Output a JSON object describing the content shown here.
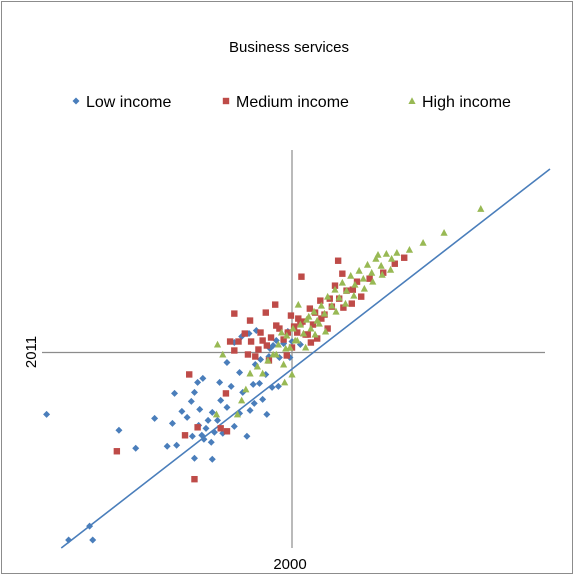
{
  "chart_data": {
    "type": "scatter",
    "title": "Business services",
    "xlabel": "2000",
    "ylabel": "2011",
    "legend_position": "top",
    "grid": false,
    "xlim": [
      -2.46,
      2.46
    ],
    "ylim": [
      -2.03,
      2.03
    ],
    "series": [
      {
        "name": "Low income",
        "color": "#4a7ebb",
        "marker": "diamond",
        "points": [
          [
            -2.34,
            -0.62
          ],
          [
            -2.13,
            -1.88
          ],
          [
            -1.93,
            -1.74
          ],
          [
            -1.9,
            -1.88
          ],
          [
            -1.65,
            -0.78
          ],
          [
            -1.49,
            -0.96
          ],
          [
            -1.31,
            -0.66
          ],
          [
            -1.19,
            -0.94
          ],
          [
            -1.14,
            -0.71
          ],
          [
            -1.1,
            -0.93
          ],
          [
            -1.05,
            -0.59
          ],
          [
            -1.0,
            -0.65
          ],
          [
            -0.96,
            -0.49
          ],
          [
            -0.95,
            -0.84
          ],
          [
            -0.93,
            -0.4
          ],
          [
            -0.9,
            -0.3
          ],
          [
            -0.89,
            -0.73
          ],
          [
            -0.88,
            -0.57
          ],
          [
            -0.86,
            -0.83
          ],
          [
            -0.84,
            -0.87
          ],
          [
            -0.82,
            -0.76
          ],
          [
            -0.8,
            -0.68
          ],
          [
            -0.77,
            -0.9
          ],
          [
            -0.74,
            -0.8
          ],
          [
            -0.71,
            -0.68
          ],
          [
            -0.68,
            -0.48
          ],
          [
            -0.66,
            -0.81
          ],
          [
            -0.62,
            -0.55
          ],
          [
            -0.58,
            -0.34
          ],
          [
            -0.55,
            -0.74
          ],
          [
            -0.5,
            -0.61
          ],
          [
            -0.47,
            -0.4
          ],
          [
            -0.43,
            -0.84
          ],
          [
            -0.4,
            -0.58
          ],
          [
            -0.37,
            -0.32
          ],
          [
            -0.35,
            -0.12
          ],
          [
            -0.31,
            -0.31
          ],
          [
            -0.28,
            -0.47
          ],
          [
            -0.25,
            -0.22
          ],
          [
            -0.22,
            -0.04
          ],
          [
            -0.19,
            -0.35
          ],
          [
            -0.15,
            0.12
          ],
          [
            -0.12,
            -0.05
          ],
          [
            -0.08,
            0.09
          ],
          [
            -0.04,
            0.21
          ],
          [
            0.0,
            0.11
          ],
          [
            -0.62,
            -0.1
          ],
          [
            -0.55,
            0.1
          ],
          [
            -0.48,
            0.16
          ],
          [
            -0.41,
            0.19
          ],
          [
            -0.34,
            0.22
          ],
          [
            -0.18,
            0.07
          ],
          [
            -0.76,
            -1.07
          ],
          [
            -0.93,
            -1.06
          ],
          [
            -0.85,
            -0.26
          ],
          [
            -0.69,
            -0.3
          ],
          [
            -0.5,
            -0.2
          ],
          [
            -0.36,
            -0.51
          ],
          [
            -0.24,
            -0.62
          ],
          [
            -0.13,
            -0.34
          ],
          [
            -0.02,
            -0.05
          ],
          [
            0.08,
            0.08
          ],
          [
            -1.12,
            -0.41
          ],
          [
            -0.76,
            -0.6
          ],
          [
            -0.21,
            0.04
          ],
          [
            -0.3,
            -0.07
          ]
        ]
      },
      {
        "name": "Medium income",
        "color": "#be4b48",
        "marker": "square",
        "points": [
          [
            -1.67,
            -0.99
          ],
          [
            -0.98,
            -0.22
          ],
          [
            -0.93,
            -1.27
          ],
          [
            -0.68,
            -0.76
          ],
          [
            -0.62,
            -0.79
          ],
          [
            -0.59,
            0.11
          ],
          [
            -0.55,
            0.02
          ],
          [
            -0.51,
            0.11
          ],
          [
            -0.45,
            0.19
          ],
          [
            -0.42,
            -0.02
          ],
          [
            -0.39,
            0.11
          ],
          [
            -0.35,
            -0.04
          ],
          [
            -0.32,
            0.03
          ],
          [
            -0.28,
            0.12
          ],
          [
            -0.24,
            0.07
          ],
          [
            -0.2,
            0.15
          ],
          [
            -0.16,
            0.48
          ],
          [
            -0.12,
            0.24
          ],
          [
            -0.08,
            0.13
          ],
          [
            -0.04,
            0.2
          ],
          [
            -0.01,
            0.37
          ],
          [
            0.02,
            0.26
          ],
          [
            0.06,
            0.34
          ],
          [
            0.1,
            0.31
          ],
          [
            0.13,
            0.18
          ],
          [
            0.17,
            0.44
          ],
          [
            0.2,
            0.28
          ],
          [
            0.24,
            0.14
          ],
          [
            0.27,
            0.52
          ],
          [
            0.31,
            0.38
          ],
          [
            0.34,
            0.24
          ],
          [
            0.38,
            0.46
          ],
          [
            0.41,
            0.67
          ],
          [
            0.45,
            0.54
          ],
          [
            0.48,
            0.79
          ],
          [
            0.52,
            0.62
          ],
          [
            0.57,
            0.49
          ],
          [
            0.62,
            0.71
          ],
          [
            0.66,
            0.56
          ],
          [
            0.74,
            0.74
          ],
          [
            0.09,
            0.76
          ],
          [
            0.44,
            0.92
          ],
          [
            0.08,
            0.29
          ],
          [
            0.0,
            0.05
          ],
          [
            0.15,
            0.18
          ],
          [
            -0.22,
            -0.08
          ],
          [
            -0.05,
            -0.03
          ],
          [
            0.05,
            0.2
          ],
          [
            -0.55,
            0.39
          ],
          [
            -0.4,
            0.32
          ],
          [
            -0.25,
            0.4
          ],
          [
            0.22,
            0.4
          ],
          [
            -0.9,
            -0.75
          ],
          [
            -1.02,
            -0.83
          ],
          [
            -0.63,
            -0.41
          ],
          [
            -0.3,
            0.2
          ],
          [
            -0.15,
            0.27
          ],
          [
            0.18,
            0.1
          ],
          [
            0.28,
            0.34
          ],
          [
            0.36,
            0.54
          ],
          [
            0.49,
            0.45
          ],
          [
            0.58,
            0.63
          ],
          [
            1.07,
            0.95
          ],
          [
            0.87,
            0.8
          ],
          [
            0.98,
            0.89
          ]
        ]
      },
      {
        "name": "High income",
        "color": "#98b954",
        "marker": "triangle",
        "points": [
          [
            -0.72,
            -0.62
          ],
          [
            -0.71,
            0.08
          ],
          [
            -0.66,
            -0.02
          ],
          [
            -0.52,
            -0.62
          ],
          [
            -0.48,
            -0.48
          ],
          [
            -0.44,
            -0.37
          ],
          [
            -0.4,
            -0.21
          ],
          [
            -0.33,
            -0.14
          ],
          [
            -0.28,
            -0.21
          ],
          [
            -0.23,
            -0.08
          ],
          [
            -0.18,
            -0.02
          ],
          [
            -0.13,
            0.08
          ],
          [
            -0.08,
            -0.12
          ],
          [
            -0.05,
            0.17
          ],
          [
            -0.02,
            0.05
          ],
          [
            0.01,
            0.24
          ],
          [
            0.05,
            0.12
          ],
          [
            0.08,
            0.28
          ],
          [
            0.11,
            0.19
          ],
          [
            0.14,
            0.33
          ],
          [
            0.18,
            0.24
          ],
          [
            0.21,
            0.41
          ],
          [
            0.24,
            0.32
          ],
          [
            0.28,
            0.47
          ],
          [
            0.31,
            0.39
          ],
          [
            0.34,
            0.56
          ],
          [
            0.38,
            0.47
          ],
          [
            0.41,
            0.63
          ],
          [
            0.45,
            0.55
          ],
          [
            0.48,
            0.7
          ],
          [
            0.52,
            0.62
          ],
          [
            0.56,
            0.77
          ],
          [
            0.6,
            0.68
          ],
          [
            0.64,
            0.82
          ],
          [
            0.68,
            0.74
          ],
          [
            0.72,
            0.88
          ],
          [
            0.76,
            0.8
          ],
          [
            0.8,
            0.94
          ],
          [
            0.85,
            0.87
          ],
          [
            0.9,
            0.99
          ],
          [
            0.95,
            0.94
          ],
          [
            1.0,
            1.0
          ],
          [
            1.25,
            1.1
          ],
          [
            1.45,
            1.2
          ],
          [
            1.8,
            1.44
          ],
          [
            0.0,
            -0.22
          ],
          [
            -0.07,
            -0.3
          ],
          [
            -0.15,
            -0.02
          ],
          [
            -0.06,
            0.04
          ],
          [
            0.03,
            0.12
          ],
          [
            0.13,
            0.05
          ],
          [
            -0.1,
            0.2
          ],
          [
            0.22,
            0.18
          ],
          [
            0.06,
            0.48
          ],
          [
            0.16,
            0.36
          ],
          [
            0.26,
            0.29
          ],
          [
            0.32,
            0.21
          ],
          [
            0.42,
            0.41
          ],
          [
            0.51,
            0.49
          ],
          [
            0.59,
            0.57
          ],
          [
            0.69,
            0.64
          ],
          [
            0.77,
            0.71
          ],
          [
            0.86,
            0.78
          ],
          [
            0.94,
            0.83
          ],
          [
            1.12,
            1.03
          ],
          [
            0.82,
            0.98
          ]
        ]
      }
    ],
    "trendline": {
      "color": "#4a7ebb",
      "x": [
        -2.2,
        2.46
      ],
      "y": [
        -1.96,
        1.84
      ]
    }
  }
}
